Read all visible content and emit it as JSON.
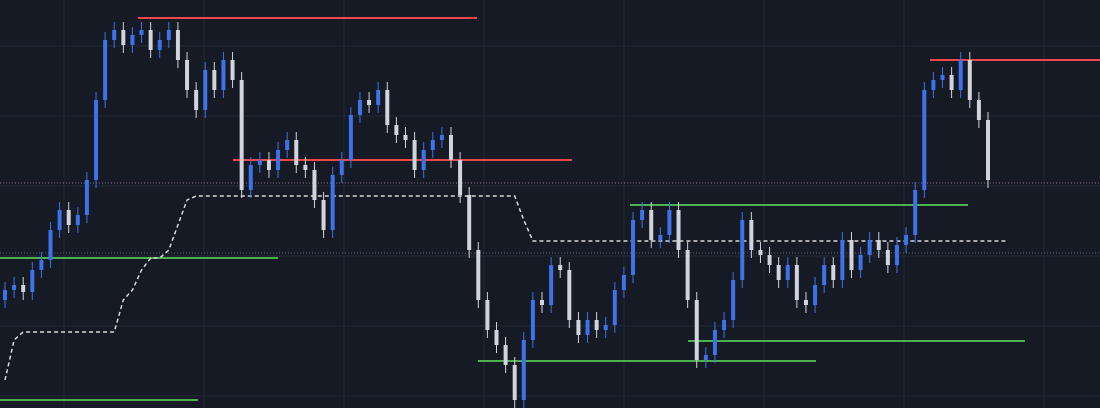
{
  "chart_data": {
    "type": "candlestick",
    "ylim": [
      0,
      408
    ],
    "up_color": "#3d72e8",
    "down_color": "#d1d4dc",
    "open": [
      108,
      118,
      123,
      116,
      138,
      148,
      178,
      198,
      183,
      193,
      228,
      308,
      368,
      378,
      363,
      373,
      378,
      358,
      368,
      378,
      348,
      318,
      298,
      338,
      318,
      348,
      328,
      218,
      243,
      248,
      238,
      258,
      268,
      243,
      238,
      208,
      178,
      233,
      248,
      293,
      308,
      303,
      318,
      283,
      273,
      268,
      238,
      258,
      268,
      273,
      248,
      213,
      158,
      108,
      78,
      63,
      43,
      8,
      68,
      108,
      103,
      143,
      138,
      88,
      73,
      88,
      78,
      83,
      118,
      133,
      188,
      198,
      168,
      173,
      198,
      158,
      108,
      48,
      53,
      78,
      88,
      128,
      188,
      158,
      153,
      143,
      128,
      143,
      108,
      103,
      123,
      143,
      128,
      168,
      138,
      153,
      168,
      158,
      143,
      163,
      173,
      218,
      318,
      328,
      333,
      318,
      348,
      308,
      288
    ],
    "high": [
      126,
      131,
      131,
      146,
      156,
      186,
      206,
      206,
      201,
      236,
      316,
      376,
      386,
      386,
      381,
      386,
      386,
      376,
      386,
      386,
      356,
      326,
      346,
      346,
      356,
      356,
      336,
      251,
      256,
      256,
      266,
      276,
      276,
      251,
      246,
      216,
      241,
      256,
      301,
      316,
      316,
      326,
      326,
      291,
      281,
      276,
      266,
      276,
      281,
      281,
      256,
      221,
      166,
      116,
      86,
      71,
      51,
      76,
      116,
      116,
      151,
      151,
      146,
      96,
      96,
      96,
      91,
      126,
      141,
      196,
      206,
      206,
      181,
      206,
      206,
      166,
      116,
      61,
      86,
      96,
      136,
      196,
      196,
      166,
      161,
      151,
      151,
      151,
      116,
      131,
      151,
      151,
      176,
      176,
      161,
      176,
      176,
      166,
      171,
      181,
      226,
      326,
      336,
      341,
      341,
      356,
      356,
      316,
      296
    ],
    "low": [
      100,
      110,
      108,
      108,
      130,
      140,
      170,
      175,
      175,
      185,
      220,
      300,
      360,
      355,
      355,
      365,
      350,
      350,
      360,
      340,
      310,
      290,
      290,
      310,
      310,
      320,
      210,
      210,
      235,
      230,
      230,
      250,
      235,
      230,
      200,
      170,
      170,
      225,
      240,
      285,
      295,
      295,
      275,
      265,
      260,
      230,
      230,
      250,
      260,
      240,
      205,
      150,
      100,
      70,
      55,
      35,
      0,
      0,
      60,
      95,
      95,
      130,
      80,
      65,
      65,
      70,
      70,
      75,
      110,
      125,
      180,
      160,
      160,
      165,
      150,
      100,
      40,
      40,
      45,
      70,
      80,
      120,
      150,
      145,
      135,
      120,
      120,
      100,
      95,
      95,
      115,
      120,
      120,
      130,
      130,
      145,
      150,
      135,
      135,
      155,
      165,
      210,
      310,
      320,
      310,
      310,
      300,
      280,
      220
    ],
    "close": [
      118,
      123,
      116,
      138,
      148,
      178,
      198,
      183,
      193,
      228,
      308,
      368,
      378,
      363,
      373,
      378,
      358,
      368,
      378,
      348,
      318,
      298,
      338,
      318,
      348,
      328,
      218,
      243,
      248,
      238,
      258,
      268,
      243,
      238,
      208,
      178,
      233,
      248,
      293,
      308,
      303,
      318,
      283,
      273,
      268,
      238,
      258,
      268,
      273,
      248,
      213,
      158,
      108,
      78,
      63,
      43,
      8,
      68,
      108,
      103,
      143,
      138,
      88,
      73,
      88,
      78,
      83,
      118,
      133,
      188,
      198,
      168,
      173,
      198,
      158,
      108,
      48,
      53,
      78,
      88,
      128,
      188,
      158,
      153,
      143,
      128,
      143,
      108,
      103,
      123,
      143,
      128,
      168,
      138,
      153,
      168,
      158,
      143,
      163,
      173,
      218,
      318,
      328,
      333,
      318,
      348,
      308,
      288,
      228
    ],
    "trail": {
      "color": "#d8d8d8",
      "values": [
        28,
        68,
        76,
        76,
        76,
        76,
        76,
        76,
        76,
        76,
        76,
        76,
        76,
        108,
        118,
        138,
        150,
        150,
        158,
        183,
        208,
        212,
        212,
        212,
        212,
        212,
        212,
        212,
        212,
        212,
        212,
        212,
        212,
        212,
        212,
        212,
        212,
        212,
        212,
        212,
        212,
        212,
        212,
        212,
        212,
        212,
        212,
        212,
        212,
        212,
        212,
        212,
        212,
        212,
        212,
        212,
        212,
        188,
        167,
        167,
        167,
        167,
        167,
        167,
        167,
        167,
        167,
        167,
        167,
        167,
        167,
        167,
        167,
        167,
        167,
        167,
        167,
        167,
        167,
        167,
        167,
        167,
        167,
        167,
        167,
        167,
        167,
        167,
        167,
        167,
        167,
        167,
        167,
        167,
        167,
        167,
        167,
        167,
        167,
        167,
        167,
        167,
        167,
        167,
        167,
        167,
        167,
        167,
        167,
        167,
        167
      ]
    },
    "resistance": {
      "color": "#f0474c",
      "values": [
        390,
        248,
        348
      ]
    },
    "support": {
      "color": "#4caf50",
      "values": [
        150,
        8,
        203,
        47,
        67
      ]
    }
  }
}
